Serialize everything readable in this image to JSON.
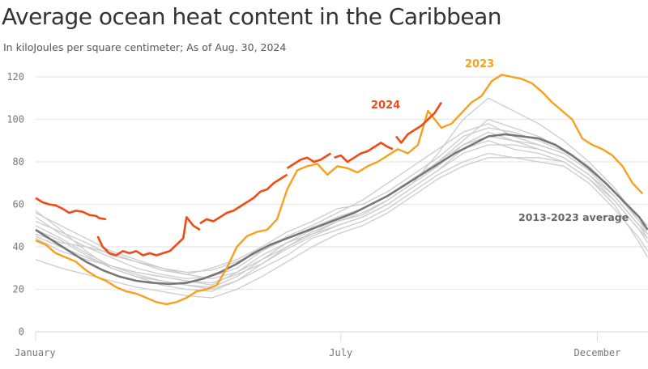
{
  "chart_data": {
    "type": "line",
    "title": "Average ocean heat content in the Caribbean",
    "subtitle": "In kiloJoules per square centimeter; As of Aug. 30, 2024",
    "xlabel": "",
    "ylabel": "",
    "x_unit": "day of year",
    "xlim": [
      0,
      365
    ],
    "ylim": [
      0,
      125
    ],
    "y_ticks": [
      0,
      20,
      40,
      60,
      80,
      100,
      120
    ],
    "x_ticks": [
      {
        "label": "January",
        "day": 0
      },
      {
        "label": "July",
        "day": 182
      },
      {
        "label": "December",
        "day": 335
      }
    ],
    "grid": true,
    "colors": {
      "2024": "#f24a14",
      "2023": "#f7a01b",
      "average": "#777777",
      "other_years": "#cccccc"
    },
    "annotations": [
      {
        "text": "2024",
        "series": "2024"
      },
      {
        "text": "2023",
        "series": "2023"
      },
      {
        "text": "2013-2023 average",
        "series": "average"
      }
    ],
    "series": [
      {
        "name": "2024",
        "segments": [
          {
            "x": [
              0,
              4,
              8,
              12,
              16,
              20,
              24,
              28,
              32,
              36,
              38,
              42
            ],
            "y": [
              63,
              61,
              60,
              59.5,
              58,
              56,
              57,
              56.5,
              55,
              54.5,
              53.5,
              53
            ]
          },
          {
            "x": [
              37,
              40,
              44,
              48,
              52,
              56,
              60,
              64,
              68,
              72,
              76,
              80,
              84,
              88,
              90,
              94,
              98
            ],
            "y": [
              45,
              40,
              37,
              36,
              38,
              37,
              38,
              36,
              37,
              36,
              37,
              38,
              41,
              44,
              54,
              50,
              48
            ]
          },
          {
            "x": [
              98,
              102,
              106,
              110,
              114,
              118,
              122,
              126,
              130,
              134,
              138,
              142,
              146,
              150
            ],
            "y": [
              51,
              53,
              52,
              54,
              56,
              57,
              59,
              61,
              63,
              66,
              67,
              70,
              72,
              74
            ]
          },
          {
            "x": [
              150,
              154,
              158,
              162,
              166,
              170,
              174,
              176
            ],
            "y": [
              77,
              79,
              81,
              82,
              80,
              81,
              83,
              84
            ]
          },
          {
            "x": [
              178,
              182,
              186,
              190,
              194,
              198,
              202,
              206,
              210,
              213
            ],
            "y": [
              82,
              83,
              80,
              82,
              84,
              85,
              87,
              89,
              87,
              86
            ]
          },
          {
            "x": [
              215,
              218,
              222,
              226,
              230,
              234,
              238,
              242
            ],
            "y": [
              92,
              89,
              93,
              95,
              97,
              100,
              103,
              108
            ]
          }
        ]
      },
      {
        "name": "2023",
        "x": [
          0,
          6,
          12,
          18,
          24,
          30,
          36,
          42,
          48,
          54,
          60,
          66,
          72,
          78,
          84,
          90,
          96,
          102,
          108,
          114,
          120,
          126,
          132,
          138,
          144,
          150,
          156,
          162,
          168,
          174,
          180,
          186,
          192,
          198,
          204,
          210,
          216,
          222,
          228,
          234,
          238,
          242,
          248,
          254,
          260,
          266,
          272,
          278,
          284,
          290,
          296,
          302,
          308,
          314,
          320,
          326,
          332,
          338,
          344,
          350,
          356,
          362
        ],
        "y": [
          43,
          41,
          37,
          35,
          33,
          29,
          26,
          24,
          21,
          19,
          18,
          16,
          14,
          13,
          14,
          16,
          19,
          20,
          22,
          30,
          40,
          45,
          47,
          48,
          53,
          67,
          76,
          78,
          79,
          74,
          78,
          77,
          75,
          78,
          80,
          83,
          86,
          84,
          88,
          104,
          100,
          96,
          98,
          103,
          108,
          111,
          118,
          121,
          120,
          119,
          117,
          113,
          108,
          104,
          100,
          91,
          88,
          86,
          83,
          78,
          70,
          65
        ]
      },
      {
        "name": "2013-2023 average",
        "x": [
          0,
          10,
          20,
          30,
          40,
          50,
          60,
          70,
          80,
          90,
          100,
          110,
          120,
          130,
          140,
          150,
          160,
          170,
          180,
          190,
          200,
          210,
          220,
          230,
          240,
          250,
          260,
          270,
          280,
          290,
          300,
          310,
          320,
          330,
          340,
          350,
          360,
          365
        ],
        "y": [
          48,
          43,
          38,
          33,
          29,
          26,
          24,
          23,
          22.5,
          23,
          25,
          28,
          32,
          37,
          41,
          44,
          47,
          50,
          53,
          56,
          60,
          64,
          69,
          74,
          79,
          84,
          88,
          92,
          93,
          92,
          91,
          88,
          83,
          77,
          70,
          62,
          54,
          48
        ]
      }
    ],
    "other_years": [
      {
        "x": [
          0,
          15,
          30,
          45,
          60,
          75,
          90,
          105,
          120,
          135,
          150,
          165,
          180,
          195,
          210,
          225,
          240,
          255,
          270,
          285,
          300,
          315,
          330,
          345,
          360,
          365
        ],
        "y": [
          57,
          48,
          38,
          30,
          26,
          22,
          20,
          19,
          24,
          32,
          40,
          47,
          52,
          55,
          62,
          70,
          84,
          100,
          110,
          104,
          98,
          90,
          80,
          68,
          52,
          48
        ]
      },
      {
        "x": [
          0,
          15,
          30,
          45,
          60,
          75,
          90,
          105,
          120,
          135,
          150,
          165,
          180,
          195,
          210,
          225,
          240,
          255,
          270,
          285,
          300,
          315,
          330,
          345,
          360,
          365
        ],
        "y": [
          54,
          46,
          40,
          35,
          30,
          27,
          25,
          26,
          30,
          38,
          45,
          50,
          56,
          62,
          70,
          78,
          86,
          94,
          98,
          92,
          88,
          84,
          76,
          64,
          50,
          44
        ]
      },
      {
        "x": [
          0,
          15,
          30,
          45,
          60,
          75,
          90,
          105,
          120,
          135,
          150,
          165,
          180,
          195,
          210,
          225,
          240,
          255,
          270,
          285,
          300,
          315,
          330,
          345,
          360,
          365
        ],
        "y": [
          50,
          44,
          37,
          31,
          28,
          26,
          24,
          22,
          28,
          36,
          42,
          46,
          50,
          54,
          60,
          68,
          76,
          86,
          90,
          86,
          84,
          80,
          72,
          62,
          48,
          42
        ]
      },
      {
        "x": [
          0,
          15,
          30,
          45,
          60,
          75,
          90,
          105,
          120,
          135,
          150,
          165,
          180,
          195,
          210,
          225,
          240,
          255,
          270,
          285,
          300,
          315,
          330,
          345,
          360,
          365
        ],
        "y": [
          46,
          42,
          40,
          37,
          33,
          29,
          27,
          30,
          34,
          40,
          47,
          52,
          58,
          60,
          66,
          74,
          82,
          92,
          96,
          94,
          90,
          85,
          78,
          66,
          52,
          46
        ]
      },
      {
        "x": [
          0,
          15,
          30,
          45,
          60,
          75,
          90,
          105,
          120,
          135,
          150,
          165,
          180,
          195,
          210,
          225,
          240,
          255,
          270,
          285,
          300,
          315,
          330,
          345,
          360,
          365
        ],
        "y": [
          44,
          38,
          34,
          31,
          27,
          24,
          22,
          20,
          24,
          30,
          36,
          44,
          48,
          52,
          58,
          66,
          74,
          80,
          84,
          82,
          80,
          78,
          70,
          58,
          44,
          38
        ]
      },
      {
        "x": [
          0,
          15,
          30,
          45,
          60,
          75,
          90,
          105,
          120,
          135,
          150,
          165,
          180,
          195,
          210,
          225,
          240,
          255,
          270,
          285,
          300,
          315,
          330,
          345,
          360,
          365
        ],
        "y": [
          34,
          30,
          27,
          24,
          21,
          19,
          17,
          16,
          20,
          26,
          33,
          40,
          46,
          50,
          56,
          64,
          72,
          78,
          82,
          82,
          82,
          80,
          72,
          60,
          42,
          35
        ]
      },
      {
        "x": [
          0,
          15,
          30,
          45,
          60,
          75,
          90,
          105,
          120,
          135,
          150,
          165,
          180,
          195,
          210,
          225,
          240,
          255,
          270,
          285,
          300,
          315,
          330,
          345,
          360,
          365
        ],
        "y": [
          52,
          47,
          42,
          36,
          33,
          30,
          28,
          29,
          33,
          38,
          44,
          49,
          54,
          58,
          64,
          72,
          80,
          88,
          92,
          90,
          88,
          84,
          76,
          64,
          50,
          46
        ]
      },
      {
        "x": [
          0,
          15,
          30,
          45,
          60,
          75,
          90,
          105,
          120,
          135,
          150,
          165,
          180,
          195,
          210,
          225,
          240,
          255,
          270,
          285,
          300,
          315,
          330,
          345,
          360,
          365
        ],
        "y": [
          48,
          43,
          36,
          30,
          26,
          24,
          22,
          21,
          26,
          34,
          40,
          46,
          52,
          56,
          62,
          70,
          78,
          88,
          94,
          90,
          86,
          82,
          74,
          62,
          48,
          44
        ]
      },
      {
        "x": [
          0,
          15,
          30,
          45,
          60,
          75,
          90,
          105,
          120,
          135,
          150,
          165,
          180,
          195,
          210,
          225,
          240,
          255,
          270,
          285,
          300,
          315,
          330,
          345,
          360,
          365
        ],
        "y": [
          56,
          50,
          44,
          38,
          34,
          30,
          27,
          25,
          28,
          34,
          42,
          48,
          54,
          58,
          64,
          72,
          80,
          90,
          100,
          96,
          92,
          86,
          78,
          66,
          54,
          50
        ]
      },
      {
        "x": [
          0,
          15,
          30,
          45,
          60,
          75,
          90,
          105,
          120,
          135,
          150,
          165,
          180,
          195,
          210,
          225,
          240,
          255,
          270,
          285,
          300,
          315,
          330,
          345,
          360,
          365
        ],
        "y": [
          45,
          40,
          35,
          31,
          28,
          26,
          24,
          23,
          27,
          32,
          39,
          45,
          50,
          54,
          60,
          68,
          76,
          84,
          88,
          88,
          86,
          82,
          74,
          64,
          50,
          46
        ]
      }
    ]
  }
}
